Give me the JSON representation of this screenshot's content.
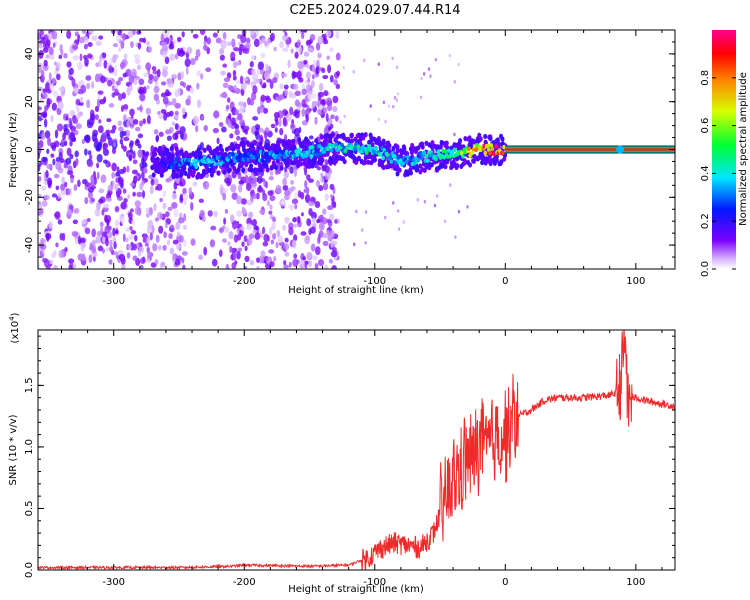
{
  "title": "C2E5.2024.029.07.44.R14",
  "colors": {
    "snr_line": "#ee2b2b",
    "spectrum_low": "#7a00ff",
    "spectrum_high": "#ff0000",
    "axis": "#000000"
  },
  "colorbar": {
    "label": "Normalized spectral amplitude",
    "ticks": [
      "0.0",
      "0.2",
      "0.4",
      "0.6",
      "0.8"
    ],
    "tick_values": [
      0.0,
      0.2,
      0.4,
      0.6,
      0.8
    ],
    "range": [
      0,
      1
    ]
  },
  "chart_data": [
    {
      "type": "heatmap",
      "title": "",
      "xlabel": "Height of straight line (km)",
      "ylabel": "Frequency (Hz)",
      "xlim": [
        -358,
        130
      ],
      "ylim": [
        -50,
        50
      ],
      "x_ticks": [
        -300,
        -200,
        -100,
        0,
        100
      ],
      "x_tick_labels": [
        "-300",
        "-200",
        "-100",
        "0",
        "100"
      ],
      "y_ticks": [
        -40,
        -20,
        0,
        20,
        40
      ],
      "y_tick_labels": [
        "-40",
        "-20",
        "0",
        "20",
        "40"
      ],
      "colormap": "rainbow (purple → blue → cyan → green → yellow → red)",
      "noise_region": {
        "x_range": [
          -358,
          -128
        ],
        "y_range": [
          -50,
          50
        ],
        "amplitude": 0.1,
        "gap_x": [
          -245,
          -218
        ]
      },
      "echo_band": [
        {
          "x": -270,
          "freq": -5,
          "amplitude": 0.15
        },
        {
          "x": -240,
          "freq": -6,
          "amplitude": 0.35
        },
        {
          "x": -200,
          "freq": -3,
          "amplitude": 0.3
        },
        {
          "x": -160,
          "freq": -2,
          "amplitude": 0.35
        },
        {
          "x": -125,
          "freq": 1,
          "amplitude": 0.4
        },
        {
          "x": -100,
          "freq": 0,
          "amplitude": 0.45
        },
        {
          "x": -80,
          "freq": -5,
          "amplitude": 0.35
        },
        {
          "x": -60,
          "freq": -3,
          "amplitude": 0.4
        },
        {
          "x": -40,
          "freq": -2,
          "amplitude": 0.45
        },
        {
          "x": -20,
          "freq": 0,
          "amplitude": 0.8
        },
        {
          "x": 0,
          "freq": 0,
          "amplitude": 0.95
        },
        {
          "x": 85,
          "freq": 0,
          "amplitude": 0.95
        },
        {
          "x": 130,
          "freq": 0,
          "amplitude": 0.95
        }
      ]
    },
    {
      "type": "line",
      "title": "",
      "xlabel": "Height of straight line (km)",
      "ylabel": "SNR (10 * v/v)",
      "y_multiplier": "(x10",
      "y_multiplier_exp": "4",
      "y_multiplier_close": ")",
      "xlim": [
        -358,
        130
      ],
      "ylim": [
        0,
        1.95
      ],
      "x_ticks": [
        -300,
        -200,
        -100,
        0,
        100
      ],
      "x_tick_labels": [
        "-300",
        "-200",
        "-100",
        "0",
        "100"
      ],
      "y_ticks": [
        0.0,
        0.5,
        1.0,
        1.5
      ],
      "y_tick_labels": [
        "0.0",
        "0.5",
        "1.0",
        "1.5"
      ],
      "series": [
        {
          "x": [
            -358,
            -300,
            -250,
            -210,
            -200,
            -150,
            -120,
            -105,
            -95,
            -85,
            -75,
            -65,
            -55,
            -50,
            -45,
            -40,
            -35,
            -30,
            -25,
            -20,
            -18,
            -15,
            -10,
            -5,
            0,
            5,
            10,
            20,
            30,
            40,
            60,
            80,
            85,
            88,
            90,
            92,
            94,
            96,
            100,
            110,
            120,
            130
          ],
          "y": [
            0.02,
            0.02,
            0.02,
            0.03,
            0.04,
            0.03,
            0.04,
            0.1,
            0.18,
            0.22,
            0.2,
            0.18,
            0.3,
            0.45,
            0.6,
            0.7,
            0.8,
            0.9,
            0.9,
            1.0,
            1.1,
            0.95,
            1.05,
            1.1,
            1.1,
            1.2,
            1.25,
            1.3,
            1.38,
            1.4,
            1.4,
            1.42,
            1.44,
            1.5,
            1.7,
            1.9,
            1.3,
            1.4,
            1.4,
            1.37,
            1.35,
            1.33
          ]
        }
      ]
    }
  ]
}
